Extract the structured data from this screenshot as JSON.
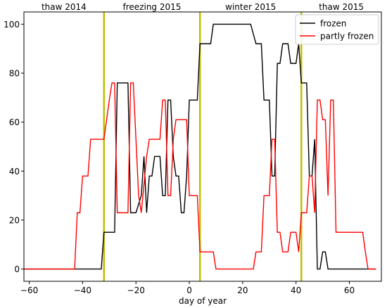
{
  "chart_data": {
    "type": "line",
    "title": "",
    "xlabel": "day of year",
    "ylabel": "",
    "xlim": [
      -62,
      72
    ],
    "ylim": [
      -5,
      105
    ],
    "xticks": [
      -60,
      -40,
      -20,
      0,
      20,
      40,
      60
    ],
    "yticks": [
      0,
      20,
      40,
      60,
      80,
      100
    ],
    "xtick_labels": [
      "−60",
      "−40",
      "−20",
      "0",
      "20",
      "40",
      "60"
    ],
    "ytick_labels": [
      "0",
      "20",
      "40",
      "60",
      "80",
      "100"
    ],
    "grid": false,
    "legend_position": "top-right",
    "period_dividers": {
      "x": [
        -32,
        4,
        42
      ],
      "color": "#bfbf00"
    },
    "period_labels": [
      {
        "text": "thaw 2014",
        "x": -47
      },
      {
        "text": "freezing 2015",
        "x": -14
      },
      {
        "text": "winter 2015",
        "x": 23
      },
      {
        "text": "thaw 2015",
        "x": 57
      }
    ],
    "series": [
      {
        "name": "frozen",
        "color": "#000000",
        "points": [
          [
            -62,
            0
          ],
          [
            -33,
            0
          ],
          [
            -32,
            15
          ],
          [
            -28,
            15
          ],
          [
            -27,
            76
          ],
          [
            -23,
            76
          ],
          [
            -22,
            23
          ],
          [
            -20,
            23
          ],
          [
            -18,
            30
          ],
          [
            -17,
            46
          ],
          [
            -16,
            23
          ],
          [
            -15,
            38
          ],
          [
            -14,
            38
          ],
          [
            -13,
            46
          ],
          [
            -11,
            46
          ],
          [
            -10,
            30
          ],
          [
            -9,
            30
          ],
          [
            -8,
            69
          ],
          [
            -7,
            69
          ],
          [
            -6,
            46
          ],
          [
            -5,
            38
          ],
          [
            -4,
            38
          ],
          [
            -3,
            23
          ],
          [
            -2,
            23
          ],
          [
            -1,
            38
          ],
          [
            0,
            69
          ],
          [
            3,
            69
          ],
          [
            4,
            92
          ],
          [
            8,
            92
          ],
          [
            9,
            100
          ],
          [
            23,
            100
          ],
          [
            25,
            92
          ],
          [
            27,
            92
          ],
          [
            28,
            69
          ],
          [
            30,
            69
          ],
          [
            31,
            38
          ],
          [
            32,
            38
          ],
          [
            33,
            84
          ],
          [
            34,
            84
          ],
          [
            35,
            92
          ],
          [
            37,
            92
          ],
          [
            38,
            84
          ],
          [
            40,
            84
          ],
          [
            41,
            92
          ],
          [
            42,
            76
          ],
          [
            44,
            76
          ],
          [
            45,
            38
          ],
          [
            46,
            38
          ],
          [
            47,
            53
          ],
          [
            48,
            0
          ],
          [
            49,
            0
          ],
          [
            50,
            7
          ],
          [
            51,
            7
          ],
          [
            52,
            0
          ],
          [
            70,
            0
          ]
        ]
      },
      {
        "name": "partly frozen",
        "color": "#ff0000",
        "points": [
          [
            -62,
            0
          ],
          [
            -43,
            0
          ],
          [
            -42,
            23
          ],
          [
            -41,
            23
          ],
          [
            -40,
            38
          ],
          [
            -38,
            38
          ],
          [
            -37,
            53
          ],
          [
            -32,
            53
          ],
          [
            -30,
            69
          ],
          [
            -29,
            76
          ],
          [
            -28,
            76
          ],
          [
            -27,
            23
          ],
          [
            -23,
            23
          ],
          [
            -22,
            76
          ],
          [
            -21,
            76
          ],
          [
            -20,
            53
          ],
          [
            -19,
            30
          ],
          [
            -18,
            23
          ],
          [
            -16,
            46
          ],
          [
            -15,
            53
          ],
          [
            -11,
            53
          ],
          [
            -10,
            69
          ],
          [
            -9,
            69
          ],
          [
            -8,
            30
          ],
          [
            -7,
            30
          ],
          [
            -6,
            53
          ],
          [
            -5,
            61
          ],
          [
            -1,
            61
          ],
          [
            0,
            30
          ],
          [
            3,
            30
          ],
          [
            4,
            7
          ],
          [
            9,
            7
          ],
          [
            10,
            0
          ],
          [
            24,
            0
          ],
          [
            25,
            7
          ],
          [
            27,
            7
          ],
          [
            28,
            30
          ],
          [
            30,
            30
          ],
          [
            31,
            53
          ],
          [
            32,
            53
          ],
          [
            33,
            15
          ],
          [
            34,
            15
          ],
          [
            35,
            7
          ],
          [
            37,
            7
          ],
          [
            38,
            15
          ],
          [
            40,
            15
          ],
          [
            41,
            7
          ],
          [
            42,
            23
          ],
          [
            44,
            23
          ],
          [
            45,
            38
          ],
          [
            46,
            38
          ],
          [
            47,
            23
          ],
          [
            48,
            69
          ],
          [
            49,
            69
          ],
          [
            50,
            61
          ],
          [
            51,
            61
          ],
          [
            52,
            30
          ],
          [
            53,
            69
          ],
          [
            54,
            69
          ],
          [
            55,
            15
          ],
          [
            65,
            15
          ],
          [
            66,
            7
          ],
          [
            67,
            0
          ],
          [
            70,
            0
          ]
        ]
      }
    ]
  }
}
